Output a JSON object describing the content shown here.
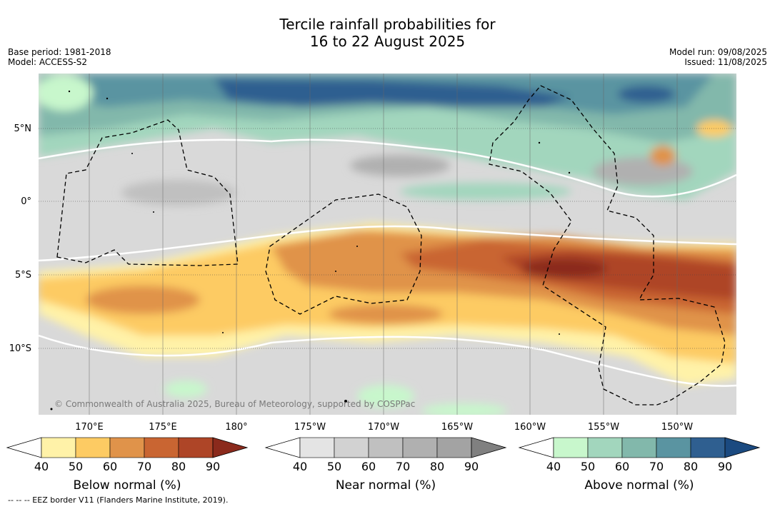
{
  "title": {
    "line1": "Tercile rainfall probabilities for",
    "line2": "16 to 22 August 2025"
  },
  "meta_left": {
    "base_period": "Base period: 1981-2018",
    "model": "Model: ACCESS-S2"
  },
  "meta_right": {
    "model_run": "Model run: 09/08/2025",
    "issued": "Issued: 11/08/2025"
  },
  "map": {
    "lat_labels": [
      "5°N",
      "0°",
      "5°S",
      "10°S"
    ],
    "lon_labels": [
      "170°E",
      "175°E",
      "180°",
      "175°W",
      "170°W",
      "165°W",
      "160°W",
      "155°W",
      "150°W"
    ],
    "copyright": "© Commonwealth of Australia 2025, Bureau of Meteorology, supported by COSPPac"
  },
  "colorbars": [
    {
      "name": "Below normal (%)",
      "ticks": [
        "40",
        "50",
        "60",
        "70",
        "80",
        "90"
      ],
      "colors": [
        "#fff2a8",
        "#fdcb63",
        "#e0934a",
        "#c96532",
        "#ae4527",
        "#8b2a1c"
      ]
    },
    {
      "name": "Near normal (%)",
      "ticks": [
        "40",
        "50",
        "60",
        "70",
        "80",
        "90"
      ],
      "colors": [
        "#e4e4e4",
        "#d2d2d2",
        "#c0c0c0",
        "#b0b0b0",
        "#a3a3a3",
        "#808080"
      ]
    },
    {
      "name": "Above normal (%)",
      "ticks": [
        "40",
        "50",
        "60",
        "70",
        "80",
        "90"
      ],
      "colors": [
        "#c8f7cc",
        "#a2d6bd",
        "#82b8ab",
        "#5a94a1",
        "#2f5f90",
        "#1b4a80"
      ]
    }
  ],
  "footnote": "--  --  -- EEZ border V11 (Flanders Marine Institute, 2019)."
}
